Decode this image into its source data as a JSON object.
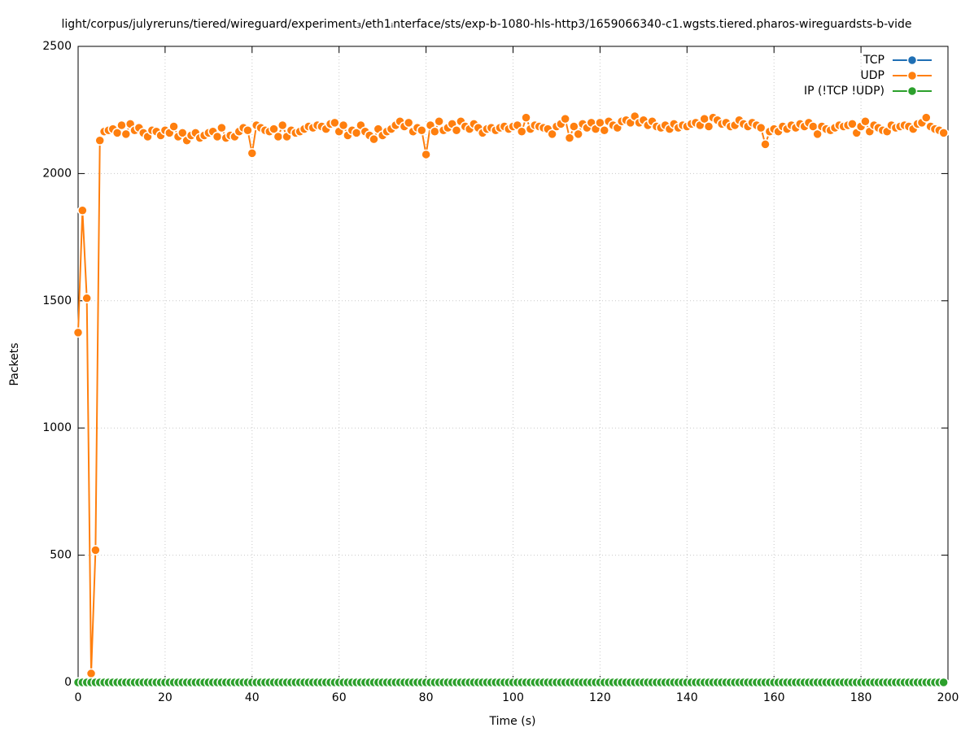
{
  "chart_data": {
    "type": "line",
    "title": "light/corpus/julyreruns/tiered/wireguard/experiment₃/eth1ᵢnterface/sts/exp-b-1080-hls-http3/1659066340-c1.wgsts.tiered.pharos-wireguardsts-b-vide",
    "xlabel": "Time (s)",
    "ylabel": "Packets",
    "x": [
      0,
      1,
      2,
      3,
      4,
      5,
      6,
      7,
      8,
      9,
      10,
      11,
      12,
      13,
      14,
      15,
      16,
      17,
      18,
      19,
      20,
      21,
      22,
      23,
      24,
      25,
      26,
      27,
      28,
      29,
      30,
      31,
      32,
      33,
      34,
      35,
      36,
      37,
      38,
      39,
      40,
      41,
      42,
      43,
      44,
      45,
      46,
      47,
      48,
      49,
      50,
      51,
      52,
      53,
      54,
      55,
      56,
      57,
      58,
      59,
      60,
      61,
      62,
      63,
      64,
      65,
      66,
      67,
      68,
      69,
      70,
      71,
      72,
      73,
      74,
      75,
      76,
      77,
      78,
      79,
      80,
      81,
      82,
      83,
      84,
      85,
      86,
      87,
      88,
      89,
      90,
      91,
      92,
      93,
      94,
      95,
      96,
      97,
      98,
      99,
      100,
      101,
      102,
      103,
      104,
      105,
      106,
      107,
      108,
      109,
      110,
      111,
      112,
      113,
      114,
      115,
      116,
      117,
      118,
      119,
      120,
      121,
      122,
      123,
      124,
      125,
      126,
      127,
      128,
      129,
      130,
      131,
      132,
      133,
      134,
      135,
      136,
      137,
      138,
      139,
      140,
      141,
      142,
      143,
      144,
      145,
      146,
      147,
      148,
      149,
      150,
      151,
      152,
      153,
      154,
      155,
      156,
      157,
      158,
      159,
      160,
      161,
      162,
      163,
      164,
      165,
      166,
      167,
      168,
      169,
      170,
      171,
      172,
      173,
      174,
      175,
      176,
      177,
      178,
      179,
      180,
      181,
      182,
      183,
      184,
      185,
      186,
      187,
      188,
      189,
      190,
      191,
      192,
      193,
      194,
      195,
      196,
      197,
      198,
      199
    ],
    "series": [
      {
        "name": "TCP",
        "color": "#1f6fb4",
        "values": [
          0,
          0,
          0,
          0,
          0,
          0,
          0,
          0,
          0,
          0,
          0,
          0,
          0,
          0,
          0,
          0,
          0,
          0,
          0,
          0,
          0,
          0,
          0,
          0,
          0,
          0,
          0,
          0,
          0,
          0,
          0,
          0,
          0,
          0,
          0,
          0,
          0,
          0,
          0,
          0,
          0,
          0,
          0,
          0,
          0,
          0,
          0,
          0,
          0,
          0,
          0,
          0,
          0,
          0,
          0,
          0,
          0,
          0,
          0,
          0,
          0,
          0,
          0,
          0,
          0,
          0,
          0,
          0,
          0,
          0,
          0,
          0,
          0,
          0,
          0,
          0,
          0,
          0,
          0,
          0,
          0,
          0,
          0,
          0,
          0,
          0,
          0,
          0,
          0,
          0,
          0,
          0,
          0,
          0,
          0,
          0,
          0,
          0,
          0,
          0,
          0,
          0,
          0,
          0,
          0,
          0,
          0,
          0,
          0,
          0,
          0,
          0,
          0,
          0,
          0,
          0,
          0,
          0,
          0,
          0,
          0,
          0,
          0,
          0,
          0,
          0,
          0,
          0,
          0,
          0,
          0,
          0,
          0,
          0,
          0,
          0,
          0,
          0,
          0,
          0,
          0,
          0,
          0,
          0,
          0,
          0,
          0,
          0,
          0,
          0,
          0,
          0,
          0,
          0,
          0,
          0,
          0,
          0,
          0,
          0,
          0,
          0,
          0,
          0,
          0,
          0,
          0,
          0,
          0,
          0,
          0,
          0,
          0,
          0,
          0,
          0,
          0,
          0,
          0,
          0,
          0,
          0,
          0,
          0,
          0,
          0,
          0,
          0,
          0,
          0,
          0,
          0,
          0,
          0,
          0,
          0,
          0,
          0,
          0,
          0
        ]
      },
      {
        "name": "UDP",
        "color": "#ff7f0e",
        "values": [
          1375,
          1855,
          1510,
          35,
          520,
          2130,
          2165,
          2170,
          2175,
          2160,
          2190,
          2155,
          2195,
          2170,
          2180,
          2160,
          2145,
          2170,
          2165,
          2150,
          2170,
          2160,
          2185,
          2145,
          2160,
          2130,
          2150,
          2160,
          2140,
          2150,
          2160,
          2165,
          2145,
          2180,
          2140,
          2150,
          2145,
          2165,
          2180,
          2170,
          2080,
          2190,
          2180,
          2170,
          2165,
          2175,
          2145,
          2190,
          2145,
          2170,
          2160,
          2165,
          2175,
          2185,
          2180,
          2190,
          2185,
          2175,
          2195,
          2200,
          2165,
          2190,
          2150,
          2170,
          2160,
          2190,
          2165,
          2150,
          2135,
          2175,
          2150,
          2165,
          2175,
          2190,
          2205,
          2185,
          2200,
          2165,
          2180,
          2170,
          2075,
          2190,
          2165,
          2205,
          2170,
          2180,
          2195,
          2170,
          2205,
          2185,
          2175,
          2195,
          2180,
          2160,
          2175,
          2180,
          2170,
          2180,
          2185,
          2175,
          2185,
          2190,
          2165,
          2220,
          2175,
          2190,
          2185,
          2180,
          2175,
          2155,
          2185,
          2195,
          2215,
          2140,
          2185,
          2155,
          2195,
          2180,
          2200,
          2175,
          2200,
          2170,
          2205,
          2190,
          2180,
          2205,
          2210,
          2200,
          2225,
          2200,
          2210,
          2190,
          2205,
          2185,
          2180,
          2190,
          2175,
          2195,
          2180,
          2190,
          2185,
          2195,
          2200,
          2190,
          2215,
          2185,
          2220,
          2210,
          2195,
          2200,
          2185,
          2190,
          2210,
          2195,
          2185,
          2200,
          2190,
          2180,
          2115,
          2165,
          2175,
          2165,
          2185,
          2175,
          2190,
          2180,
          2195,
          2185,
          2200,
          2185,
          2155,
          2185,
          2175,
          2170,
          2180,
          2190,
          2185,
          2190,
          2195,
          2160,
          2185,
          2205,
          2165,
          2190,
          2180,
          2170,
          2165,
          2190,
          2180,
          2185,
          2190,
          2185,
          2175,
          2195,
          2200,
          2220,
          2185,
          2175,
          2170,
          2160
        ]
      },
      {
        "name": "IP (!TCP  !UDP)",
        "color": "#2ca02c",
        "values": [
          0,
          0,
          0,
          0,
          0,
          0,
          0,
          0,
          0,
          0,
          0,
          0,
          0,
          0,
          0,
          0,
          0,
          0,
          0,
          0,
          0,
          0,
          0,
          0,
          0,
          0,
          0,
          0,
          0,
          0,
          0,
          0,
          0,
          0,
          0,
          0,
          0,
          0,
          0,
          0,
          0,
          0,
          0,
          0,
          0,
          0,
          0,
          0,
          0,
          0,
          0,
          0,
          0,
          0,
          0,
          0,
          0,
          0,
          0,
          0,
          0,
          0,
          0,
          0,
          0,
          0,
          0,
          0,
          0,
          0,
          0,
          0,
          0,
          0,
          0,
          0,
          0,
          0,
          0,
          0,
          0,
          0,
          0,
          0,
          0,
          0,
          0,
          0,
          0,
          0,
          0,
          0,
          0,
          0,
          0,
          0,
          0,
          0,
          0,
          0,
          0,
          0,
          0,
          0,
          0,
          0,
          0,
          0,
          0,
          0,
          0,
          0,
          0,
          0,
          0,
          0,
          0,
          0,
          0,
          0,
          0,
          0,
          0,
          0,
          0,
          0,
          0,
          0,
          0,
          0,
          0,
          0,
          0,
          0,
          0,
          0,
          0,
          0,
          0,
          0,
          0,
          0,
          0,
          0,
          0,
          0,
          0,
          0,
          0,
          0,
          0,
          0,
          0,
          0,
          0,
          0,
          0,
          0,
          0,
          0,
          0,
          0,
          0,
          0,
          0,
          0,
          0,
          0,
          0,
          0,
          0,
          0,
          0,
          0,
          0,
          0,
          0,
          0,
          0,
          0,
          0,
          0,
          0,
          0,
          0,
          0,
          0,
          0,
          0,
          0,
          0,
          0,
          0,
          0,
          0,
          0,
          0,
          0,
          0,
          0
        ]
      }
    ],
    "xlim": [
      0,
      200
    ],
    "xticks": [
      0,
      20,
      40,
      60,
      80,
      100,
      120,
      140,
      160,
      180,
      200
    ],
    "ylim": [
      0,
      2500
    ],
    "yticks": [
      0,
      500,
      1000,
      1500,
      2000,
      2500
    ],
    "grid": true,
    "legend": "upper right"
  }
}
